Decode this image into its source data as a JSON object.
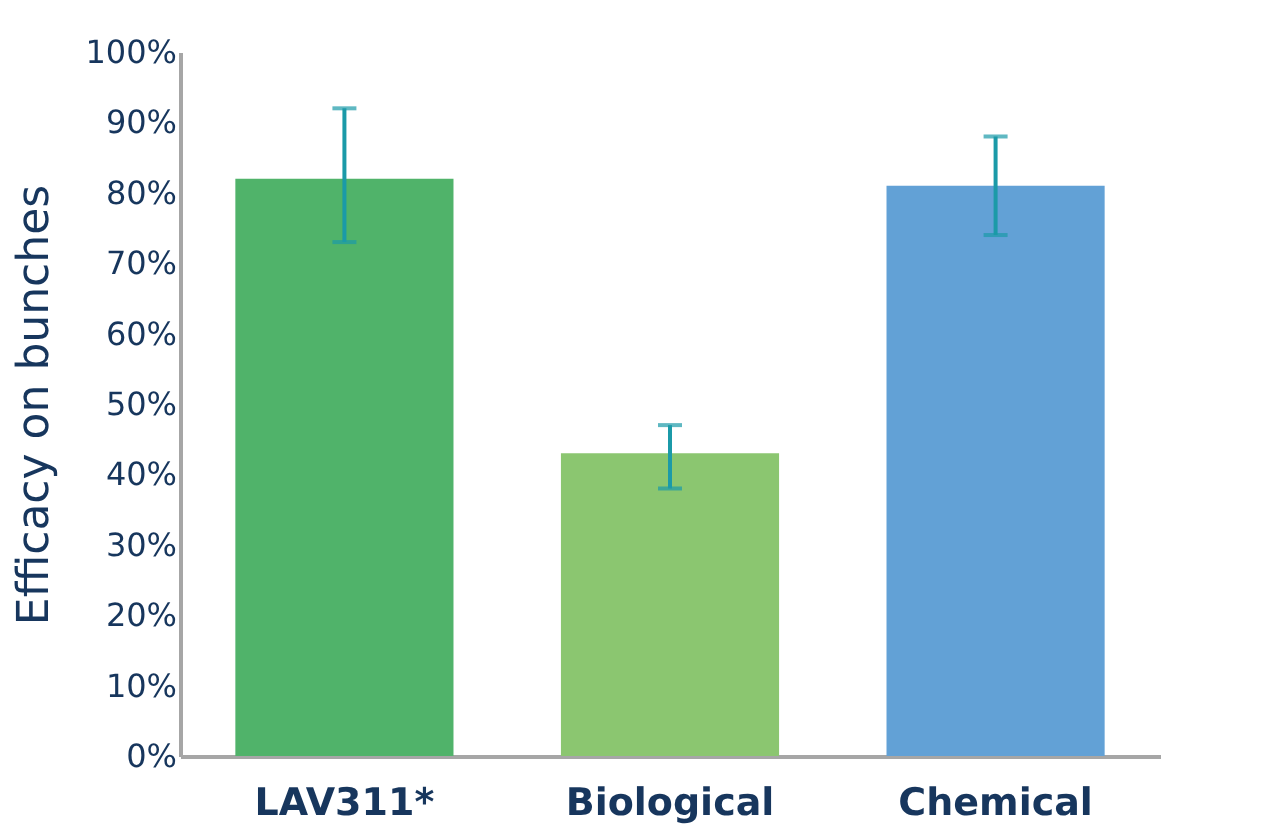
{
  "chart_data": {
    "type": "bar",
    "ylabel": "Efficacy on bunches",
    "categories": [
      "LAV311*",
      "Biological",
      "Chemical"
    ],
    "values": [
      82,
      43,
      81
    ],
    "colors": [
      "#50b36a",
      "#8bc670",
      "#62a1d6"
    ],
    "errors": [
      [
        73,
        92
      ],
      [
        38,
        47
      ],
      [
        74,
        88
      ]
    ],
    "ylim": [
      0,
      100
    ],
    "yticks": [
      {
        "value": 0,
        "label": "0%"
      },
      {
        "value": 10,
        "label": "10%"
      },
      {
        "value": 20,
        "label": "20%"
      },
      {
        "value": 30,
        "label": "30%"
      },
      {
        "value": 40,
        "label": "40%"
      },
      {
        "value": 50,
        "label": "50%"
      },
      {
        "value": 60,
        "label": "60%"
      },
      {
        "value": 70,
        "label": "70%"
      },
      {
        "value": 80,
        "label": "80%"
      },
      {
        "value": 90,
        "label": "90%"
      },
      {
        "value": 100,
        "label": "100%"
      }
    ],
    "grid": false,
    "legend": false
  }
}
